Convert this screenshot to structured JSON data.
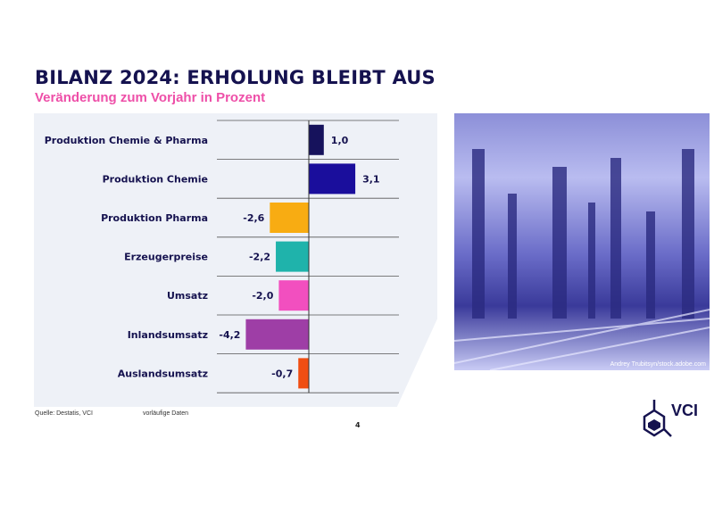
{
  "header": {
    "title": "BILANZ 2024: ERHOLUNG BLEIBT AUS",
    "subtitle": "Veränderung zum Vorjahr in Prozent"
  },
  "chart_data": {
    "type": "bar",
    "orientation": "horizontal",
    "categories": [
      "Produktion Chemie & Pharma",
      "Produktion Chemie",
      "Produktion Pharma",
      "Erzeugerpreise",
      "Umsatz",
      "Inlandsumsatz",
      "Auslandsumsatz"
    ],
    "values": [
      1.0,
      3.1,
      -2.6,
      -2.2,
      -2.0,
      -4.2,
      -0.7
    ],
    "data_labels": [
      "1,0",
      "3,1",
      "-2,6",
      "-2,2",
      "-2,0",
      "-4,2",
      "-0,7"
    ],
    "colors": [
      "#16125c",
      "#1a0e9c",
      "#f8ac12",
      "#1fb3ab",
      "#f24fbf",
      "#9e3ea6",
      "#f04e12"
    ],
    "grid": true
  },
  "footer": {
    "source": "Quelle: Destatis, VCI",
    "note": "vorläufige Daten",
    "page": "4"
  },
  "photo": {
    "credit": "Andrey Trubitsyn/stock.adobe.com"
  },
  "logo": {
    "text": "VCI"
  }
}
